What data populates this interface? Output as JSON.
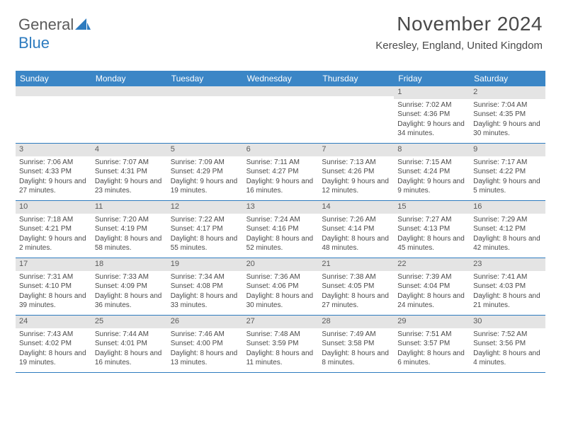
{
  "logo": {
    "part1": "General",
    "part2": "Blue",
    "brand_color": "#2d7bbf"
  },
  "header": {
    "month_title": "November 2024",
    "location": "Keresley, England, United Kingdom"
  },
  "colors": {
    "header_bg": "#3b86c6",
    "header_text": "#ffffff",
    "num_bar_bg": "#e4e4e4",
    "divider": "#2d7bbf",
    "body_text": "#4a4a4a"
  },
  "typography": {
    "month_fontsize": 28,
    "location_fontsize": 15,
    "dayheader_fontsize": 12,
    "cell_fontsize": 10
  },
  "day_names": [
    "Sunday",
    "Monday",
    "Tuesday",
    "Wednesday",
    "Thursday",
    "Friday",
    "Saturday"
  ],
  "weeks": [
    [
      {
        "n": "",
        "sr": "",
        "ss": "",
        "dl": ""
      },
      {
        "n": "",
        "sr": "",
        "ss": "",
        "dl": ""
      },
      {
        "n": "",
        "sr": "",
        "ss": "",
        "dl": ""
      },
      {
        "n": "",
        "sr": "",
        "ss": "",
        "dl": ""
      },
      {
        "n": "",
        "sr": "",
        "ss": "",
        "dl": ""
      },
      {
        "n": "1",
        "sr": "Sunrise: 7:02 AM",
        "ss": "Sunset: 4:36 PM",
        "dl": "Daylight: 9 hours and 34 minutes."
      },
      {
        "n": "2",
        "sr": "Sunrise: 7:04 AM",
        "ss": "Sunset: 4:35 PM",
        "dl": "Daylight: 9 hours and 30 minutes."
      }
    ],
    [
      {
        "n": "3",
        "sr": "Sunrise: 7:06 AM",
        "ss": "Sunset: 4:33 PM",
        "dl": "Daylight: 9 hours and 27 minutes."
      },
      {
        "n": "4",
        "sr": "Sunrise: 7:07 AM",
        "ss": "Sunset: 4:31 PM",
        "dl": "Daylight: 9 hours and 23 minutes."
      },
      {
        "n": "5",
        "sr": "Sunrise: 7:09 AM",
        "ss": "Sunset: 4:29 PM",
        "dl": "Daylight: 9 hours and 19 minutes."
      },
      {
        "n": "6",
        "sr": "Sunrise: 7:11 AM",
        "ss": "Sunset: 4:27 PM",
        "dl": "Daylight: 9 hours and 16 minutes."
      },
      {
        "n": "7",
        "sr": "Sunrise: 7:13 AM",
        "ss": "Sunset: 4:26 PM",
        "dl": "Daylight: 9 hours and 12 minutes."
      },
      {
        "n": "8",
        "sr": "Sunrise: 7:15 AM",
        "ss": "Sunset: 4:24 PM",
        "dl": "Daylight: 9 hours and 9 minutes."
      },
      {
        "n": "9",
        "sr": "Sunrise: 7:17 AM",
        "ss": "Sunset: 4:22 PM",
        "dl": "Daylight: 9 hours and 5 minutes."
      }
    ],
    [
      {
        "n": "10",
        "sr": "Sunrise: 7:18 AM",
        "ss": "Sunset: 4:21 PM",
        "dl": "Daylight: 9 hours and 2 minutes."
      },
      {
        "n": "11",
        "sr": "Sunrise: 7:20 AM",
        "ss": "Sunset: 4:19 PM",
        "dl": "Daylight: 8 hours and 58 minutes."
      },
      {
        "n": "12",
        "sr": "Sunrise: 7:22 AM",
        "ss": "Sunset: 4:17 PM",
        "dl": "Daylight: 8 hours and 55 minutes."
      },
      {
        "n": "13",
        "sr": "Sunrise: 7:24 AM",
        "ss": "Sunset: 4:16 PM",
        "dl": "Daylight: 8 hours and 52 minutes."
      },
      {
        "n": "14",
        "sr": "Sunrise: 7:26 AM",
        "ss": "Sunset: 4:14 PM",
        "dl": "Daylight: 8 hours and 48 minutes."
      },
      {
        "n": "15",
        "sr": "Sunrise: 7:27 AM",
        "ss": "Sunset: 4:13 PM",
        "dl": "Daylight: 8 hours and 45 minutes."
      },
      {
        "n": "16",
        "sr": "Sunrise: 7:29 AM",
        "ss": "Sunset: 4:12 PM",
        "dl": "Daylight: 8 hours and 42 minutes."
      }
    ],
    [
      {
        "n": "17",
        "sr": "Sunrise: 7:31 AM",
        "ss": "Sunset: 4:10 PM",
        "dl": "Daylight: 8 hours and 39 minutes."
      },
      {
        "n": "18",
        "sr": "Sunrise: 7:33 AM",
        "ss": "Sunset: 4:09 PM",
        "dl": "Daylight: 8 hours and 36 minutes."
      },
      {
        "n": "19",
        "sr": "Sunrise: 7:34 AM",
        "ss": "Sunset: 4:08 PM",
        "dl": "Daylight: 8 hours and 33 minutes."
      },
      {
        "n": "20",
        "sr": "Sunrise: 7:36 AM",
        "ss": "Sunset: 4:06 PM",
        "dl": "Daylight: 8 hours and 30 minutes."
      },
      {
        "n": "21",
        "sr": "Sunrise: 7:38 AM",
        "ss": "Sunset: 4:05 PM",
        "dl": "Daylight: 8 hours and 27 minutes."
      },
      {
        "n": "22",
        "sr": "Sunrise: 7:39 AM",
        "ss": "Sunset: 4:04 PM",
        "dl": "Daylight: 8 hours and 24 minutes."
      },
      {
        "n": "23",
        "sr": "Sunrise: 7:41 AM",
        "ss": "Sunset: 4:03 PM",
        "dl": "Daylight: 8 hours and 21 minutes."
      }
    ],
    [
      {
        "n": "24",
        "sr": "Sunrise: 7:43 AM",
        "ss": "Sunset: 4:02 PM",
        "dl": "Daylight: 8 hours and 19 minutes."
      },
      {
        "n": "25",
        "sr": "Sunrise: 7:44 AM",
        "ss": "Sunset: 4:01 PM",
        "dl": "Daylight: 8 hours and 16 minutes."
      },
      {
        "n": "26",
        "sr": "Sunrise: 7:46 AM",
        "ss": "Sunset: 4:00 PM",
        "dl": "Daylight: 8 hours and 13 minutes."
      },
      {
        "n": "27",
        "sr": "Sunrise: 7:48 AM",
        "ss": "Sunset: 3:59 PM",
        "dl": "Daylight: 8 hours and 11 minutes."
      },
      {
        "n": "28",
        "sr": "Sunrise: 7:49 AM",
        "ss": "Sunset: 3:58 PM",
        "dl": "Daylight: 8 hours and 8 minutes."
      },
      {
        "n": "29",
        "sr": "Sunrise: 7:51 AM",
        "ss": "Sunset: 3:57 PM",
        "dl": "Daylight: 8 hours and 6 minutes."
      },
      {
        "n": "30",
        "sr": "Sunrise: 7:52 AM",
        "ss": "Sunset: 3:56 PM",
        "dl": "Daylight: 8 hours and 4 minutes."
      }
    ]
  ]
}
